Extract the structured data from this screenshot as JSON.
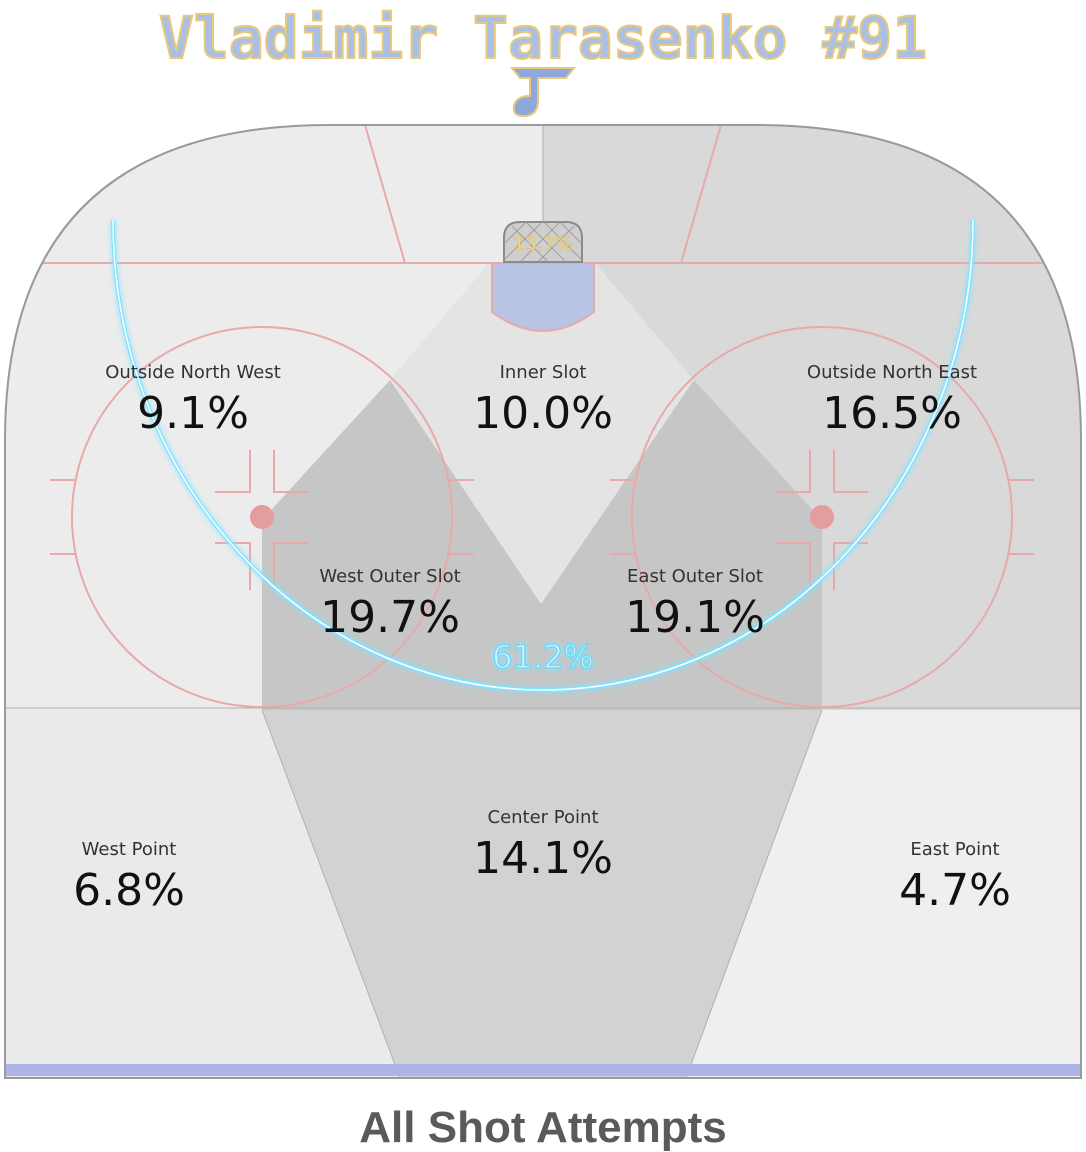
{
  "header": {
    "player_title": "Vladimir Tarasenko #91"
  },
  "footer": {
    "caption": "All Shot Attempts"
  },
  "colors": {
    "title_fill": "#a9bfe6",
    "title_outline": "#e8c87a",
    "logo_blue": "#8fa8dc",
    "ice": "#eeeeee",
    "zone_dark": "#c8c8c8",
    "zone_mid": "#d9d9d9",
    "zone_light": "#ececec",
    "red_line": "#e7a9a9",
    "crease": "#b9c3e3",
    "blue_line": "#aeb4e6",
    "arc_glow": "#7fe3ff",
    "net_label": "#f3dd8a",
    "text": "#111111",
    "footer_text": "#5a5a5a"
  },
  "icons": {
    "team_logo": "blue-note-logo-icon"
  },
  "chart_data": {
    "type": "heatmap",
    "zones": [
      {
        "name": "Outside North West",
        "value": 9.1,
        "label": "9.1%"
      },
      {
        "name": "Inner Slot",
        "value": 10.0,
        "label": "10.0%"
      },
      {
        "name": "Outside North East",
        "value": 16.5,
        "label": "16.5%"
      },
      {
        "name": "West Outer Slot",
        "value": 19.7,
        "label": "19.7%"
      },
      {
        "name": "East Outer Slot",
        "value": 19.1,
        "label": "19.1%"
      },
      {
        "name": "Center Point",
        "value": 14.1,
        "label": "14.1%"
      },
      {
        "name": "West Point",
        "value": 6.8,
        "label": "6.8%"
      },
      {
        "name": "East Point",
        "value": 4.7,
        "label": "4.7%"
      }
    ],
    "annotations": [
      {
        "name": "net",
        "value": 13.7,
        "label": "13.7%"
      },
      {
        "name": "home-plate-arc",
        "value": 61.2,
        "label": "61.2%"
      }
    ]
  }
}
